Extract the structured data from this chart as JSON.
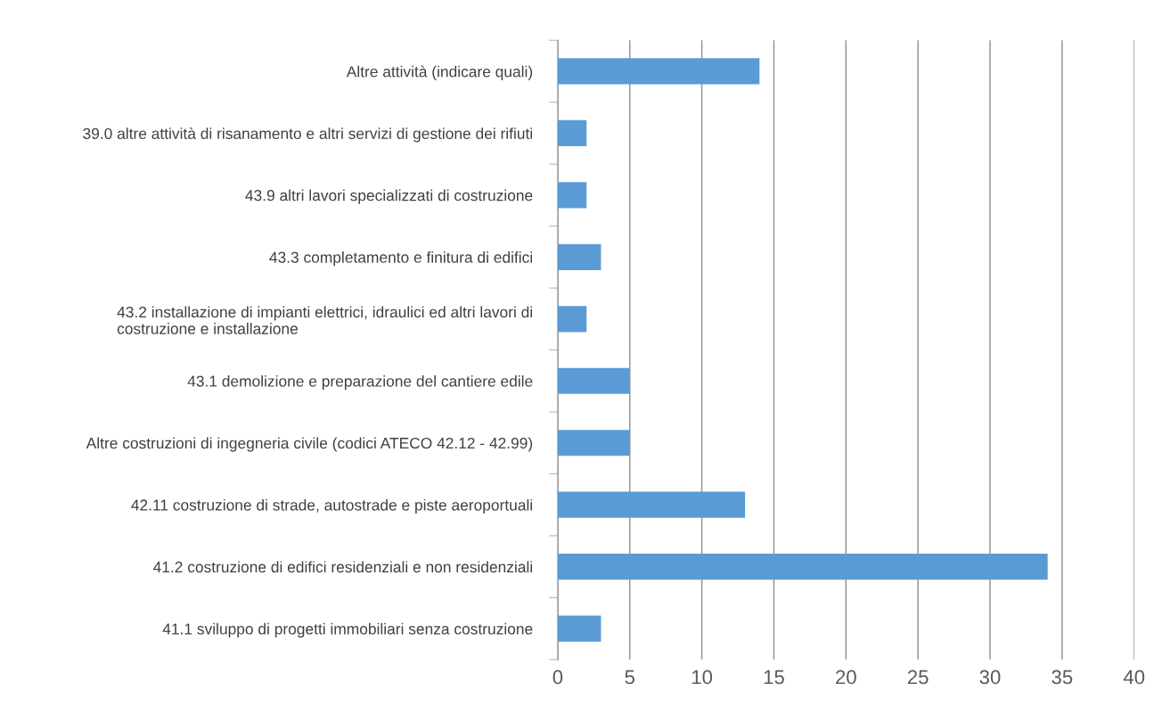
{
  "chart_data": {
    "type": "bar",
    "orientation": "horizontal",
    "categories": [
      "Altre attività (indicare quali)",
      "39.0 altre attività di risanamento e altri servizi di gestione dei rifiuti",
      "43.9 altri lavori specializzati di costruzione",
      "43.3 completamento e finitura di edifici",
      "43.2 installazione di impianti elettrici, idraulici ed altri lavori di\ncostruzione e installazione",
      "43.1 demolizione e preparazione del cantiere edile",
      "Altre costruzioni di ingegneria civile (codici ATECO 42.12 - 42.99)",
      "42.11 costruzione di strade, autostrade e piste aeroportuali",
      "41.2 costruzione di edifici residenziali e non residenziali",
      "41.1 sviluppo di progetti immobiliari senza costruzione"
    ],
    "values": [
      14,
      2,
      2,
      3,
      2,
      5,
      5,
      13,
      34,
      3
    ],
    "color": "#5b9bd5",
    "xlim": [
      0,
      40
    ],
    "xticks": [
      0,
      5,
      10,
      15,
      20,
      25,
      30,
      35,
      40
    ],
    "grid": "x"
  }
}
